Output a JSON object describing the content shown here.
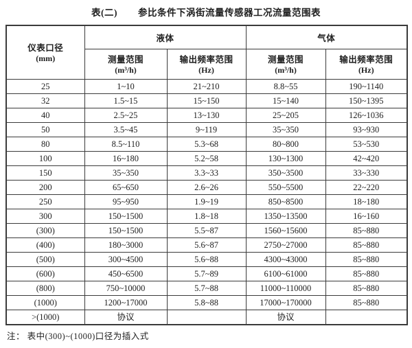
{
  "title": {
    "label": "表(二)",
    "text": "参比条件下涡街流量传感器工况流量范围表"
  },
  "table": {
    "corner_header": {
      "line1": "仪表口径",
      "line2": "(mm)"
    },
    "groups": {
      "liquid": "液体",
      "gas": "气体"
    },
    "sub_headers": {
      "liquid_range_line1": "测量范围",
      "liquid_range_line2": "(m³/h)",
      "liquid_freq_line1": "输出频率范围",
      "liquid_freq_line2": "(Hz)",
      "gas_range_line1": "测量范围",
      "gas_range_line2": "(m³/h)",
      "gas_freq_line1": "输出频率范围",
      "gas_freq_line2": "(Hz)"
    },
    "rows": [
      {
        "diameter": "25",
        "liquid_range": "1~10",
        "liquid_freq": "21~210",
        "gas_range": "8.8~55",
        "gas_freq": "190~1140"
      },
      {
        "diameter": "32",
        "liquid_range": "1.5~15",
        "liquid_freq": "15~150",
        "gas_range": "15~140",
        "gas_freq": "150~1395"
      },
      {
        "diameter": "40",
        "liquid_range": "2.5~25",
        "liquid_freq": "13~130",
        "gas_range": "25~205",
        "gas_freq": "126~1036"
      },
      {
        "diameter": "50",
        "liquid_range": "3.5~45",
        "liquid_freq": "9~119",
        "gas_range": "35~350",
        "gas_freq": "93~930"
      },
      {
        "diameter": "80",
        "liquid_range": "8.5~110",
        "liquid_freq": "5.3~68",
        "gas_range": "80~800",
        "gas_freq": "53~530"
      },
      {
        "diameter": "100",
        "liquid_range": "16~180",
        "liquid_freq": "5.2~58",
        "gas_range": "130~1300",
        "gas_freq": "42~420"
      },
      {
        "diameter": "150",
        "liquid_range": "35~350",
        "liquid_freq": "3.3~33",
        "gas_range": "350~3500",
        "gas_freq": "33~330"
      },
      {
        "diameter": "200",
        "liquid_range": "65~650",
        "liquid_freq": "2.6~26",
        "gas_range": "550~5500",
        "gas_freq": "22~220"
      },
      {
        "diameter": "250",
        "liquid_range": "95~950",
        "liquid_freq": "1.9~19",
        "gas_range": "850~8500",
        "gas_freq": "18~180"
      },
      {
        "diameter": "300",
        "liquid_range": "150~1500",
        "liquid_freq": "1.8~18",
        "gas_range": "1350~13500",
        "gas_freq": "16~160"
      },
      {
        "diameter": "(300)",
        "liquid_range": "150~1500",
        "liquid_freq": "5.5~87",
        "gas_range": "1560~15600",
        "gas_freq": "85~880"
      },
      {
        "diameter": "(400)",
        "liquid_range": "180~3000",
        "liquid_freq": "5.6~87",
        "gas_range": "2750~27000",
        "gas_freq": "85~880"
      },
      {
        "diameter": "(500)",
        "liquid_range": "300~4500",
        "liquid_freq": "5.6~88",
        "gas_range": "4300~43000",
        "gas_freq": "85~880"
      },
      {
        "diameter": "(600)",
        "liquid_range": "450~6500",
        "liquid_freq": "5.7~89",
        "gas_range": "6100~61000",
        "gas_freq": "85~880"
      },
      {
        "diameter": "(800)",
        "liquid_range": "750~10000",
        "liquid_freq": "5.7~88",
        "gas_range": "11000~110000",
        "gas_freq": "85~880"
      },
      {
        "diameter": "(1000)",
        "liquid_range": "1200~17000",
        "liquid_freq": "5.8~88",
        "gas_range": "17000~170000",
        "gas_freq": "85~880"
      },
      {
        "diameter": ">(1000)",
        "liquid_range": "协议",
        "liquid_freq": "",
        "gas_range": "协议",
        "gas_freq": ""
      }
    ]
  },
  "note": "注： 表中(300)~(1000)口径为插入式"
}
